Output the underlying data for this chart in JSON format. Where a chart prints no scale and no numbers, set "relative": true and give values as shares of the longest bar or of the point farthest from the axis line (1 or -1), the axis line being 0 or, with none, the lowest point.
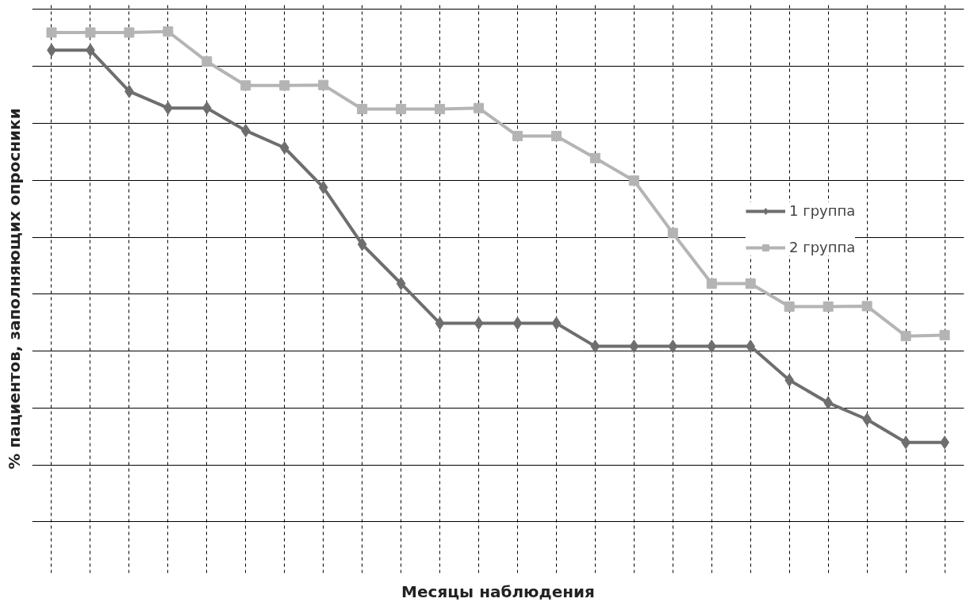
{
  "chart_data": {
    "type": "line",
    "relative": true,
    "xlabel": "Месяцы наблюдения",
    "ylabel": "% пациентов, заполняющих опросники",
    "categories": [
      null,
      null,
      null,
      null,
      null,
      null,
      null,
      null,
      null,
      null,
      null,
      null,
      null,
      null,
      null,
      null,
      null,
      null,
      null,
      null,
      null,
      null,
      null,
      null
    ],
    "series": [
      {
        "name": "1 группа",
        "color": "#6e6e6e",
        "marker": "diamond",
        "values": [
          0.962,
          0.962,
          0.878,
          0.844,
          0.844,
          0.798,
          0.763,
          0.682,
          0.566,
          0.486,
          0.405,
          0.405,
          0.405,
          0.405,
          0.358,
          0.358,
          0.358,
          0.358,
          0.358,
          0.289,
          0.243,
          0.209,
          0.162,
          0.162
        ]
      },
      {
        "name": "2 группа",
        "color": "#b4b4b4",
        "marker": "square",
        "values": [
          0.998,
          0.998,
          0.998,
          1,
          0.939,
          0.89,
          0.89,
          0.891,
          0.842,
          0.842,
          0.842,
          0.844,
          0.787,
          0.787,
          0.742,
          0.696,
          0.589,
          0.486,
          0.486,
          0.439,
          0.439,
          0.44,
          0.379,
          0.381
        ]
      }
    ],
    "grid": true,
    "legend": "right",
    "line_style": "solid"
  }
}
